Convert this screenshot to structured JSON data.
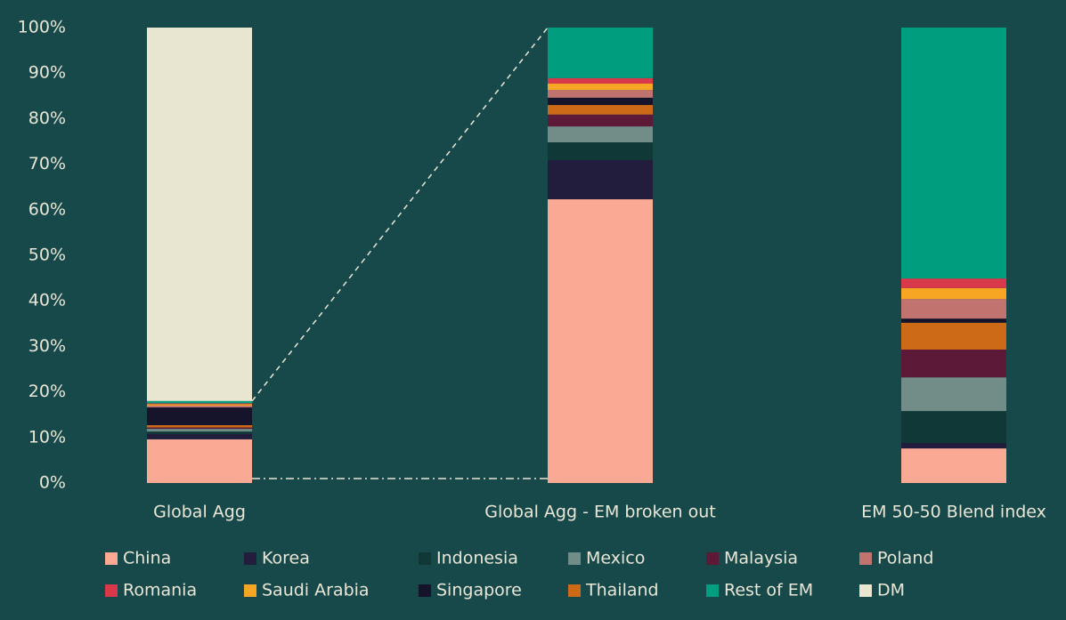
{
  "chart_data": {
    "type": "stacked_bar",
    "categories": [
      "Global Agg",
      "Global Agg - EM broken out",
      "EM 50-50 Blend index"
    ],
    "ylim": [
      0,
      100
    ],
    "yticks": [
      {
        "value": 0,
        "label": "0%"
      },
      {
        "value": 10,
        "label": "10%"
      },
      {
        "value": 20,
        "label": "20%"
      },
      {
        "value": 30,
        "label": "30%"
      },
      {
        "value": 40,
        "label": "40%"
      },
      {
        "value": 50,
        "label": "50%"
      },
      {
        "value": 60,
        "label": "60%"
      },
      {
        "value": 70,
        "label": "70%"
      },
      {
        "value": 80,
        "label": "80%"
      },
      {
        "value": 90,
        "label": "90%"
      },
      {
        "value": 100,
        "label": "100%"
      }
    ],
    "series": [
      {
        "name": "China",
        "color": "#f9a994",
        "values": [
          9.6,
          62.3,
          7.6
        ]
      },
      {
        "name": "Korea",
        "color": "#231d3d",
        "values": [
          1.2,
          8.6,
          1.2
        ]
      },
      {
        "name": "Indonesia",
        "color": "#0f3836",
        "values": [
          0.5,
          3.9,
          7.0
        ]
      },
      {
        "name": "Mexico",
        "color": "#728c87",
        "values": [
          0.6,
          3.5,
          7.4
        ]
      },
      {
        "name": "Malaysia",
        "color": "#5c1a38",
        "values": [
          0.3,
          2.6,
          6.1
        ]
      },
      {
        "name": "Poland",
        "color": "#c0736f",
        "values": [
          0.4,
          1.7,
          4.3
        ]
      },
      {
        "name": "Romania",
        "color": "#d9374a",
        "values": [
          0.2,
          1.2,
          2.1
        ]
      },
      {
        "name": "Saudi Arabia",
        "color": "#f6a623",
        "values": [
          0.3,
          1.4,
          2.4
        ]
      },
      {
        "name": "Singapore",
        "color": "#15142a",
        "values": [
          3.9,
          1.6,
          0.9
        ]
      },
      {
        "name": "Thailand",
        "color": "#cc6a17",
        "values": [
          0.5,
          2.1,
          5.9
        ]
      },
      {
        "name": "Rest of EM",
        "color": "#009e7f",
        "values": [
          0.5,
          11.1,
          55.1
        ]
      },
      {
        "name": "DM",
        "color": "#e8e5d1",
        "values": [
          82,
          0,
          0
        ]
      }
    ]
  }
}
